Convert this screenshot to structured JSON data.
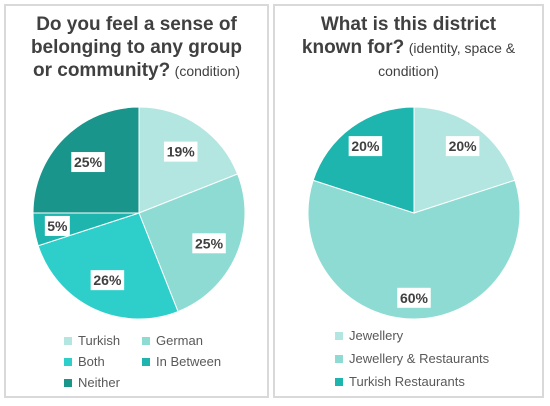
{
  "chart_data": [
    {
      "type": "pie",
      "title": "Do you feel a sense of belonging to any group or community?",
      "title_bold": "Do you feel a sense of belonging to any group or community?",
      "title_note": "(condition)",
      "categories": [
        "Turkish",
        "German",
        "Both",
        "In Between",
        "Neither"
      ],
      "values": [
        19,
        25,
        26,
        5,
        25
      ],
      "labels": [
        "19%",
        "25%",
        "26%",
        "5%",
        "25%"
      ],
      "colors": [
        "#b3e6e0",
        "#8ddbd3",
        "#2ecfca",
        "#1db5ad",
        "#1a958c"
      ],
      "legend_placement": "bottom"
    },
    {
      "type": "pie",
      "title": "What is this district known for? (identity, space & condition)",
      "title_bold": "What is this district known for?",
      "title_note": "(identity, space & condition)",
      "categories": [
        "Jewellery",
        "Jewellery & Restaurants",
        "Turkish Restaurants"
      ],
      "values": [
        20,
        60,
        20
      ],
      "labels": [
        "20%",
        "60%",
        "20%"
      ],
      "colors": [
        "#b3e6e0",
        "#8ddbd3",
        "#1db5ad"
      ],
      "legend_placement": "bottom"
    }
  ]
}
